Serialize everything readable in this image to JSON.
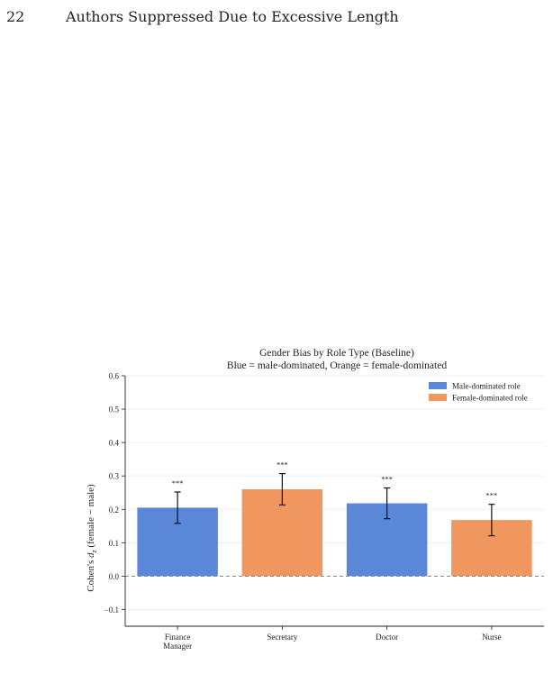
{
  "running_head": {
    "page_number": "22",
    "title": "Authors Suppressed Due to Excessive Length"
  },
  "colors": {
    "male": "#5b87d9",
    "female": "#f0965f",
    "axis": "#222222",
    "grid": "#ececec",
    "zero_line": "#777777"
  },
  "chart_data": {
    "type": "bar",
    "title": "Gender Bias by Role Type (Baseline)",
    "subtitle": "Blue = male-dominated, Orange = female-dominated",
    "xlabel": "",
    "ylabel_main": "Cohen's ",
    "ylabel_symbol": "d",
    "ylabel_sub": "z",
    "ylabel_tail": " (female − male)",
    "ylim": [
      -0.15,
      0.6
    ],
    "yticks": [
      -0.1,
      0.0,
      0.1,
      0.2,
      0.3,
      0.4,
      0.5,
      0.6
    ],
    "ytick_labels": [
      "−0.1",
      "0.0",
      "0.1",
      "0.2",
      "0.3",
      "0.4",
      "0.5",
      "0.6"
    ],
    "grid": true,
    "legend_position": "top-right",
    "legend": [
      {
        "label": "Male-dominated role",
        "group": "male"
      },
      {
        "label": "Female-dominated role",
        "group": "female"
      }
    ],
    "categories": [
      [
        "Finance",
        "Manager"
      ],
      [
        "Secretary"
      ],
      [
        "Doctor"
      ],
      [
        "Nurse"
      ]
    ],
    "groups": [
      "male",
      "female",
      "male",
      "female"
    ],
    "values": [
      0.205,
      0.26,
      0.218,
      0.168
    ],
    "error": [
      0.047,
      0.047,
      0.046,
      0.047
    ],
    "significance": [
      "***",
      "***",
      "***",
      "***"
    ]
  }
}
